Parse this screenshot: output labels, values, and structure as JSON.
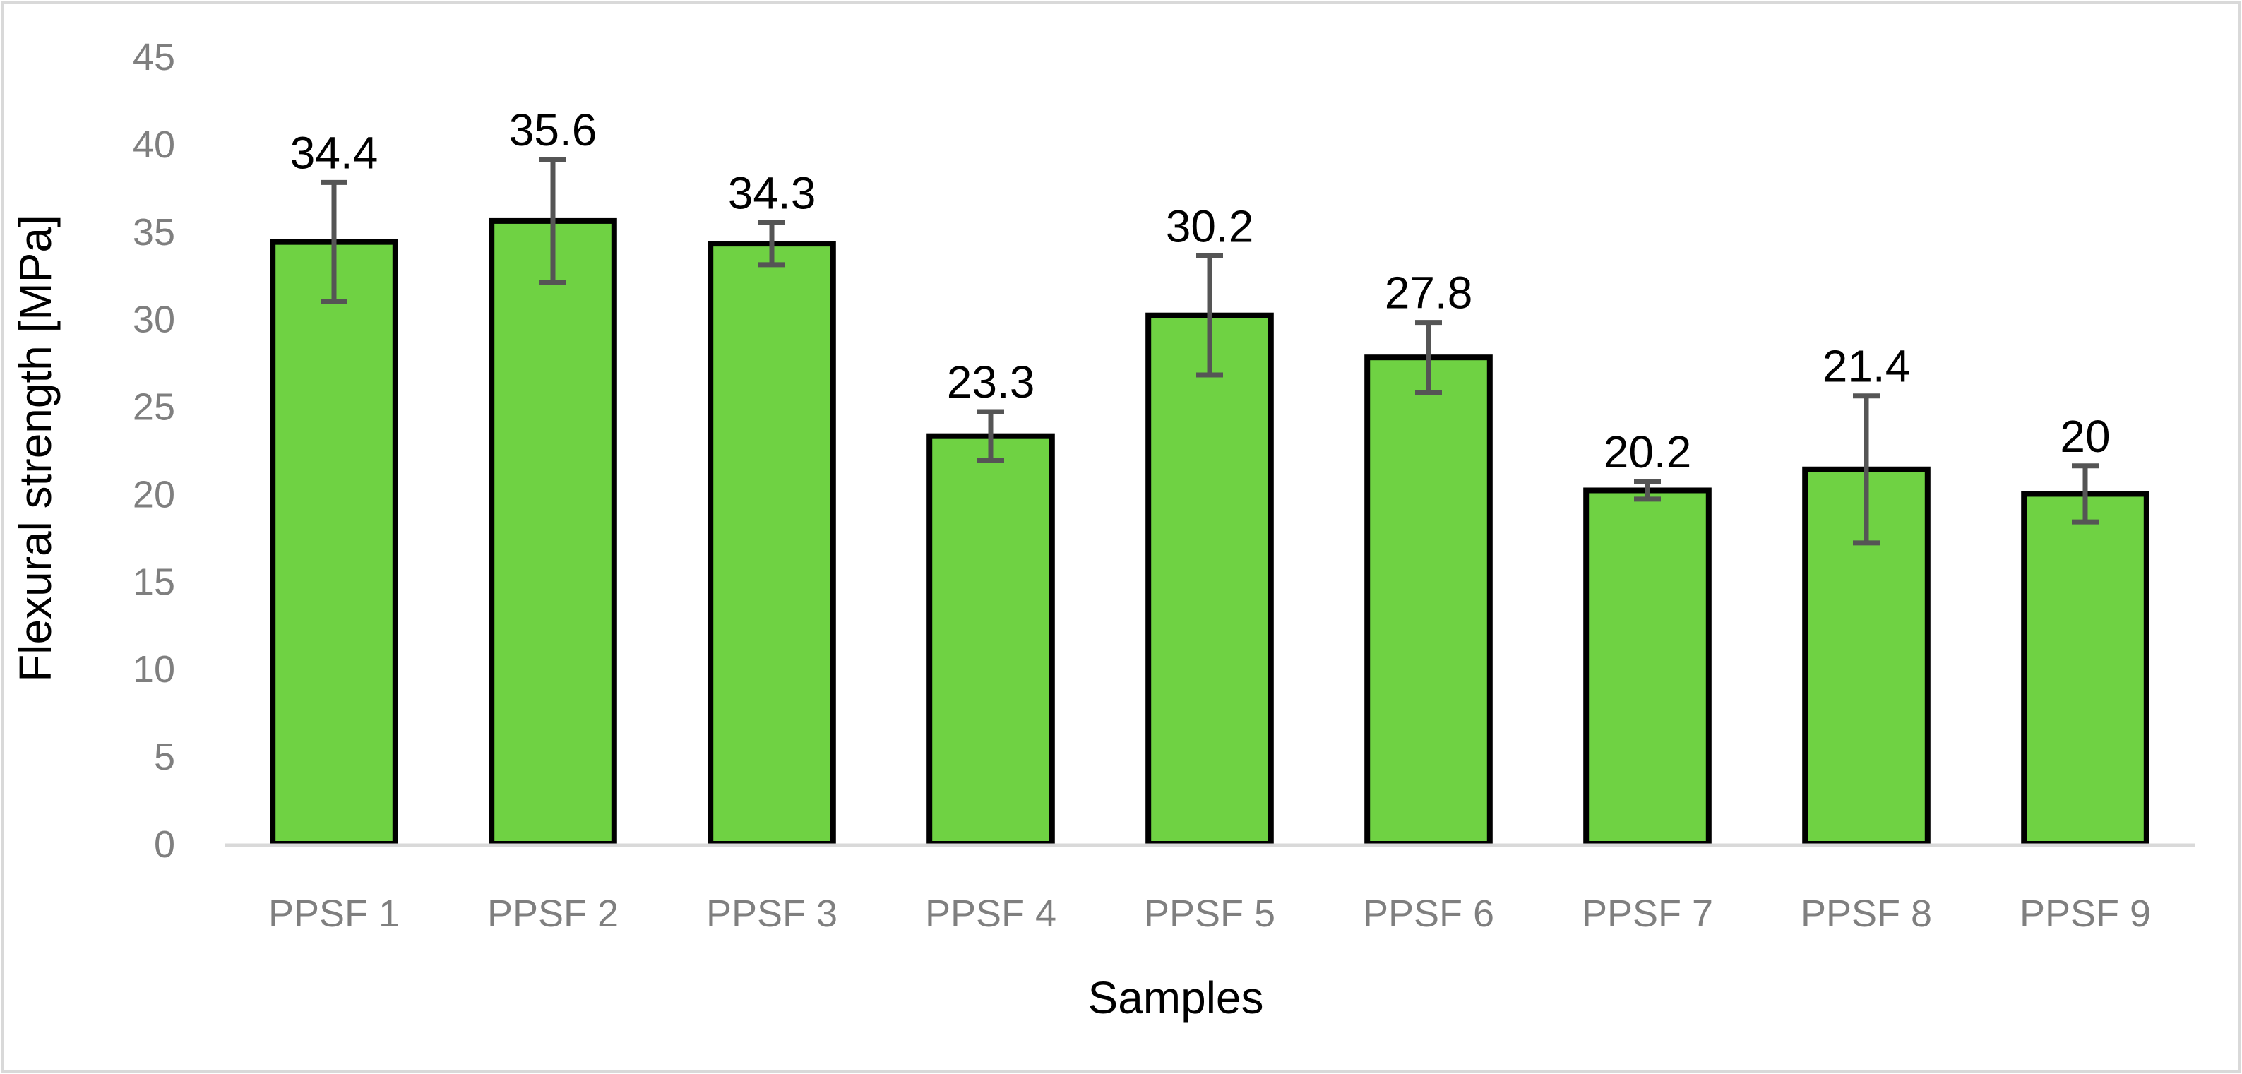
{
  "chart_data": {
    "type": "bar",
    "title": "",
    "xlabel": "Samples",
    "ylabel": "Flexural strength [MPa]",
    "ylim": [
      0,
      45
    ],
    "yticks": [
      0,
      5,
      10,
      15,
      20,
      25,
      30,
      35,
      40,
      45
    ],
    "grid": false,
    "legend": "none",
    "categories": [
      "PPSF 1",
      "PPSF 2",
      "PPSF 3",
      "PPSF 4",
      "PPSF 5",
      "PPSF 6",
      "PPSF 7",
      "PPSF 8",
      "PPSF 9"
    ],
    "values": [
      34.4,
      35.6,
      34.3,
      23.3,
      30.2,
      27.8,
      20.2,
      21.4,
      20
    ],
    "value_labels": [
      "34.4",
      "35.6",
      "34.3",
      "23.3",
      "30.2",
      "27.8",
      "20.2",
      "21.4",
      "20"
    ],
    "error": [
      3.4,
      3.5,
      1.2,
      1.4,
      3.4,
      2.0,
      0.5,
      4.2,
      1.6
    ],
    "colors": {
      "bar_fill": "#6fd243",
      "bar_stroke": "#000000",
      "error_bar": "#555555",
      "tick_text": "#7f7f7f",
      "axis_line": "#d9d9d9",
      "frame": "#d9d9d9"
    }
  }
}
